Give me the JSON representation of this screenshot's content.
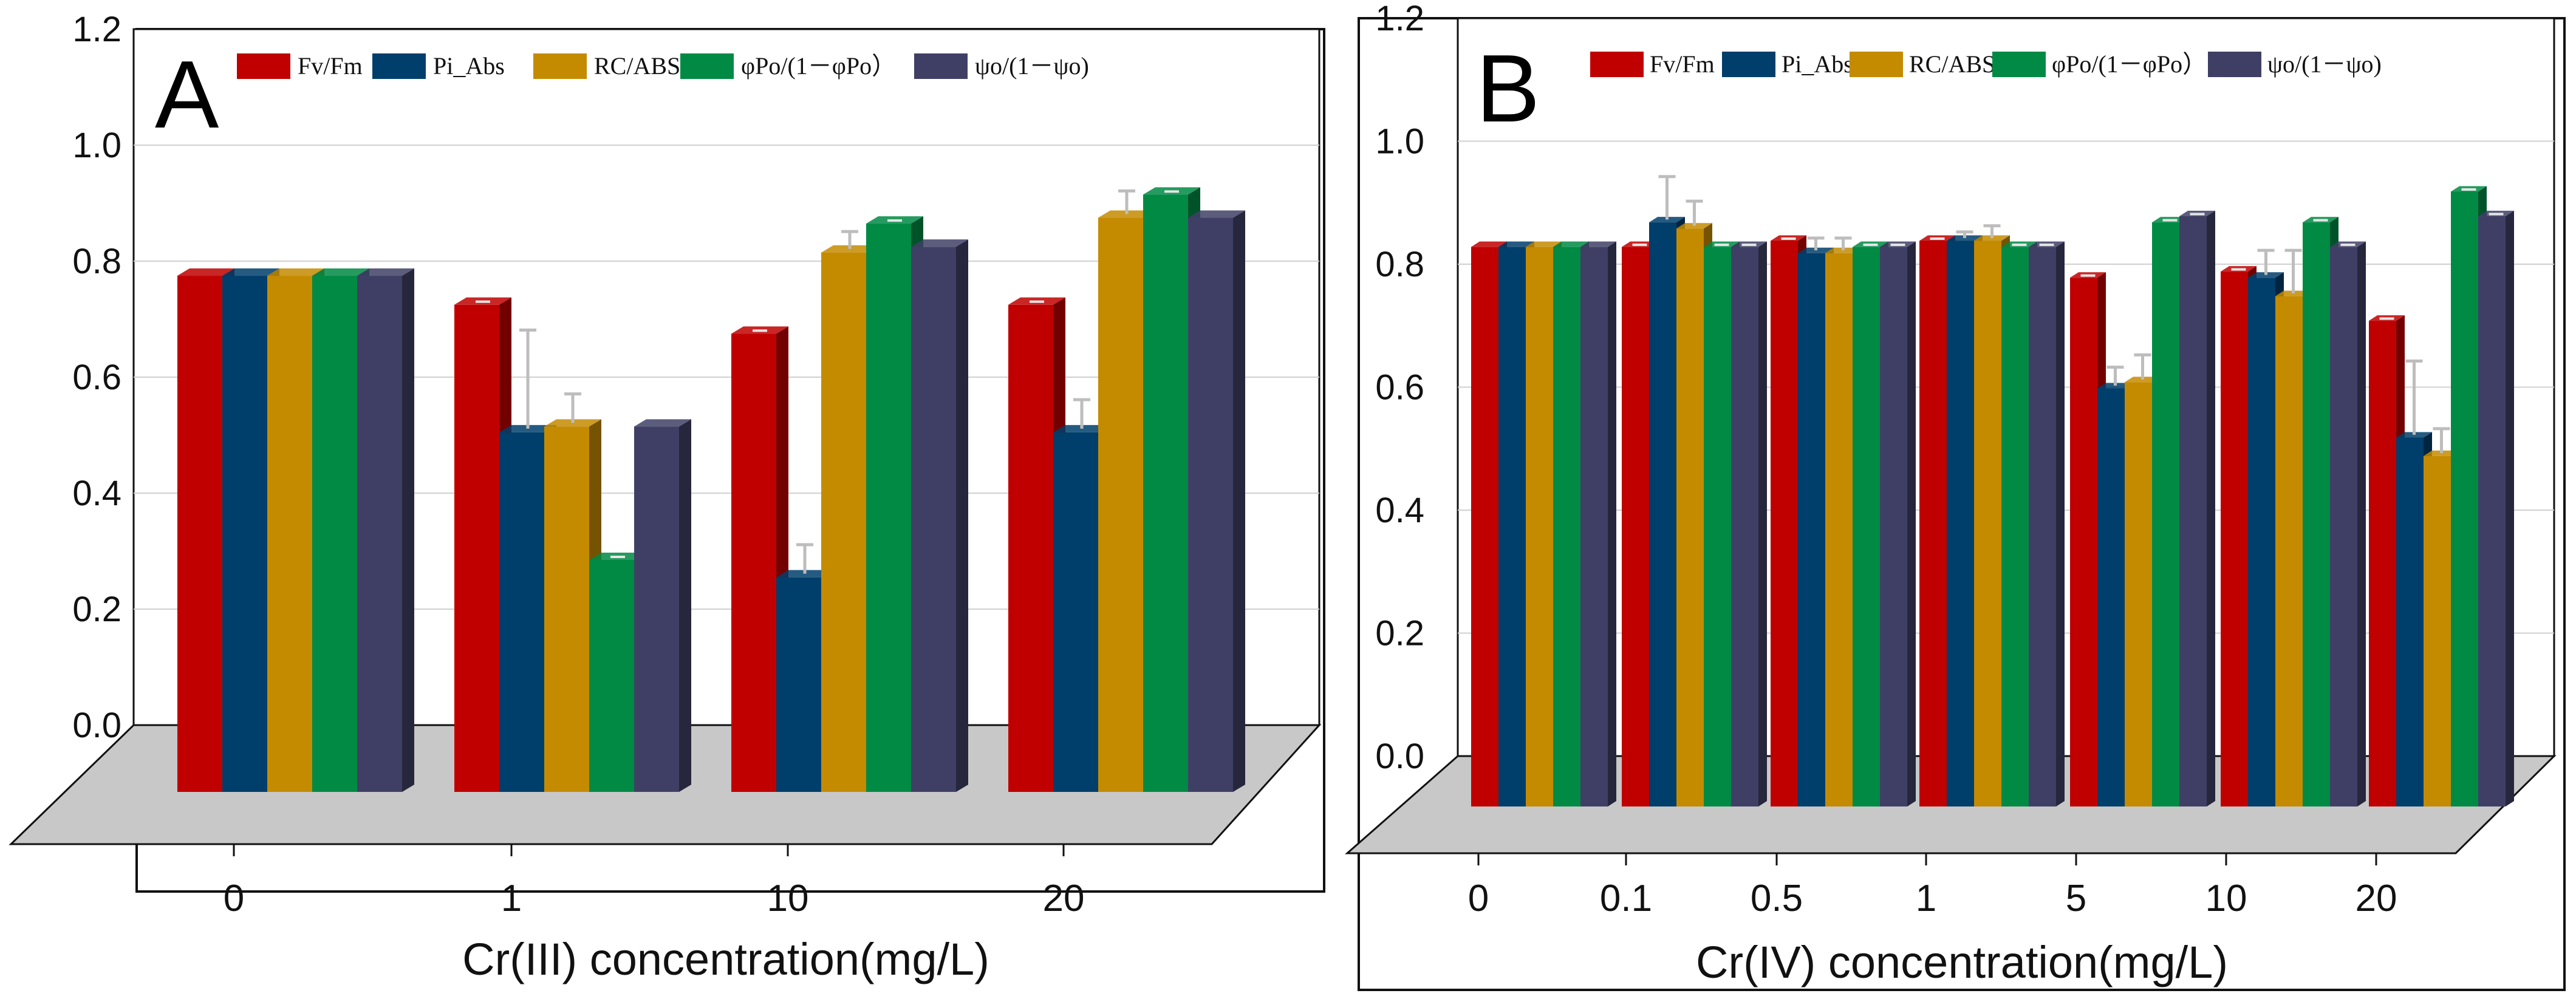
{
  "chart_data": [
    {
      "type": "bar",
      "panel_label": "A",
      "title": "",
      "xlabel": "Cr(III) concentration(mg/L)",
      "ylabel": "",
      "ylim": [
        0,
        1.2
      ],
      "yticks": [
        "0.0",
        "0.2",
        "0.4",
        "0.6",
        "0.8",
        "1.0",
        "1.2"
      ],
      "grid": true,
      "legend_position": "top",
      "categories": [
        "0",
        "1",
        "10",
        "20"
      ],
      "series": [
        {
          "name": "Fv/Fm",
          "color": "#c00000",
          "values": [
            0.89,
            0.84,
            0.79,
            0.84
          ],
          "errors": [
            0,
            0.005,
            0.005,
            0.005
          ]
        },
        {
          "name": "Pi_Abs",
          "color": "#003e6b",
          "values": [
            0.89,
            0.62,
            0.37,
            0.62
          ],
          "errors": [
            0,
            0.17,
            0.05,
            0.05
          ]
        },
        {
          "name": "RC/ABS",
          "color": "#c48b00",
          "values": [
            0.89,
            0.63,
            0.93,
            0.99
          ],
          "errors": [
            0,
            0.05,
            0.03,
            0.04
          ]
        },
        {
          "name": "φPo/(1－φPo）",
          "color": "#008a44",
          "values": [
            0.89,
            0.4,
            0.98,
            1.03
          ],
          "errors": [
            0,
            0.005,
            0.005,
            0.005
          ]
        },
        {
          "name": "ψo/(1－ψo)",
          "color": "#3f3f66",
          "values": [
            0.89,
            0.63,
            0.94,
            0.99
          ],
          "errors": [
            0,
            0,
            0,
            0
          ]
        }
      ]
    },
    {
      "type": "bar",
      "panel_label": "B",
      "title": "",
      "xlabel": "Cr(IV) concentration(mg/L)",
      "ylabel": "",
      "ylim": [
        0,
        1.2
      ],
      "yticks": [
        "0.0",
        "0.2",
        "0.4",
        "0.6",
        "0.8",
        "1.0",
        "1.2"
      ],
      "grid": true,
      "legend_position": "top",
      "categories": [
        "0",
        "0.1",
        "0.5",
        "1",
        "5",
        "10",
        "20"
      ],
      "series": [
        {
          "name": "Fv/Fm",
          "color": "#c00000",
          "values": [
            0.91,
            0.91,
            0.92,
            0.92,
            0.86,
            0.87,
            0.79
          ],
          "errors": [
            0,
            0.005,
            0.005,
            0.005,
            0.005,
            0.005,
            0.005
          ]
        },
        {
          "name": "Pi_Abs",
          "color": "#003e6b",
          "values": [
            0.91,
            0.95,
            0.9,
            0.92,
            0.68,
            0.86,
            0.6
          ],
          "errors": [
            0,
            0.07,
            0.02,
            0.01,
            0.03,
            0.04,
            0.12
          ]
        },
        {
          "name": "RC/ABS",
          "color": "#c48b00",
          "values": [
            0.91,
            0.94,
            0.9,
            0.92,
            0.69,
            0.83,
            0.57
          ],
          "errors": [
            0,
            0.04,
            0.02,
            0.02,
            0.04,
            0.07,
            0.04
          ]
        },
        {
          "name": "φPo/(1－φPo）",
          "color": "#008a44",
          "values": [
            0.91,
            0.91,
            0.91,
            0.91,
            0.95,
            0.95,
            1.0
          ],
          "errors": [
            0,
            0.005,
            0.005,
            0.005,
            0.005,
            0.005,
            0.005
          ]
        },
        {
          "name": "ψo/(1－ψo)",
          "color": "#3f3f66",
          "values": [
            0.91,
            0.91,
            0.91,
            0.91,
            0.96,
            0.91,
            0.96
          ],
          "errors": [
            0,
            0.005,
            0.005,
            0.005,
            0.005,
            0.005,
            0.005
          ]
        }
      ]
    }
  ]
}
